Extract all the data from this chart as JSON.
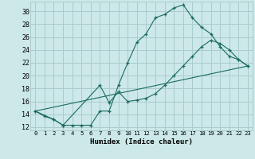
{
  "xlabel": "Humidex (Indice chaleur)",
  "bg_color": "#cce8e8",
  "grid_color": "#aacccc",
  "line_color": "#1a6b60",
  "xlim": [
    -0.5,
    23.5
  ],
  "ylim": [
    11.5,
    31.5
  ],
  "xticks": [
    0,
    1,
    2,
    3,
    4,
    5,
    6,
    7,
    8,
    9,
    10,
    11,
    12,
    13,
    14,
    15,
    16,
    17,
    18,
    19,
    20,
    21,
    22,
    23
  ],
  "yticks": [
    12,
    14,
    16,
    18,
    20,
    22,
    24,
    26,
    28,
    30
  ],
  "line1_x": [
    0,
    1,
    2,
    3,
    4,
    5,
    6,
    7,
    8,
    9,
    10,
    11,
    12,
    13,
    14,
    15,
    16,
    17,
    18,
    19,
    20,
    21,
    22,
    23
  ],
  "line1_y": [
    14.5,
    13.7,
    13.2,
    12.3,
    12.3,
    12.3,
    12.3,
    14.5,
    14.5,
    18.5,
    22.0,
    25.2,
    26.5,
    29.0,
    29.5,
    30.5,
    31.0,
    29.0,
    27.5,
    26.5,
    24.5,
    23.0,
    22.5,
    21.5
  ],
  "line2_x": [
    0,
    2,
    3,
    7,
    8,
    9,
    10,
    11,
    12,
    13,
    14,
    15,
    16,
    17,
    18,
    19,
    20,
    21,
    22,
    23
  ],
  "line2_y": [
    14.5,
    13.2,
    12.3,
    18.5,
    15.8,
    17.5,
    16.0,
    16.2,
    16.5,
    17.2,
    18.5,
    20.0,
    21.5,
    23.0,
    24.5,
    25.5,
    25.0,
    24.0,
    22.5,
    21.5
  ],
  "line3_x": [
    0,
    23
  ],
  "line3_y": [
    14.5,
    21.5
  ]
}
